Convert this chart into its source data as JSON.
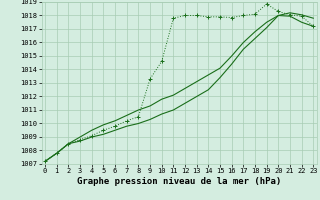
{
  "title": "Graphe pression niveau de la mer (hPa)",
  "x_values": [
    0,
    1,
    2,
    3,
    4,
    5,
    6,
    7,
    8,
    9,
    10,
    11,
    12,
    13,
    14,
    15,
    16,
    17,
    18,
    19,
    20,
    21,
    22,
    23
  ],
  "line_dotted": [
    1007.2,
    1007.8,
    1008.5,
    1008.8,
    1009.1,
    1009.5,
    1009.8,
    1010.2,
    1010.5,
    1013.3,
    1014.6,
    1017.8,
    1018.0,
    1018.0,
    1017.9,
    1017.9,
    1017.85,
    1018.0,
    1018.1,
    1018.85,
    1018.3,
    1018.05,
    1017.95,
    1017.2
  ],
  "line_solid1": [
    1007.2,
    1007.8,
    1008.5,
    1009.0,
    1009.5,
    1009.9,
    1010.2,
    1010.6,
    1011.0,
    1011.3,
    1011.8,
    1012.1,
    1012.6,
    1013.1,
    1013.6,
    1014.1,
    1015.0,
    1016.0,
    1016.8,
    1017.5,
    1018.0,
    1018.2,
    1018.05,
    1017.8
  ],
  "line_solid2": [
    1007.2,
    1007.8,
    1008.5,
    1008.7,
    1009.0,
    1009.2,
    1009.5,
    1009.8,
    1010.0,
    1010.3,
    1010.7,
    1011.0,
    1011.5,
    1012.0,
    1012.5,
    1013.4,
    1014.4,
    1015.5,
    1016.3,
    1017.1,
    1018.0,
    1017.95,
    1017.5,
    1017.2
  ],
  "line_color": "#1a6e1a",
  "bg_color": "#d4ede0",
  "grid_color": "#a8ccb4",
  "ylim": [
    1007,
    1019
  ],
  "yticks": [
    1007,
    1008,
    1009,
    1010,
    1011,
    1012,
    1013,
    1014,
    1015,
    1016,
    1017,
    1018,
    1019
  ],
  "xticks": [
    0,
    1,
    2,
    3,
    4,
    5,
    6,
    7,
    8,
    9,
    10,
    11,
    12,
    13,
    14,
    15,
    16,
    17,
    18,
    19,
    20,
    21,
    22,
    23
  ],
  "tick_fontsize": 5.0,
  "title_fontsize": 6.5
}
